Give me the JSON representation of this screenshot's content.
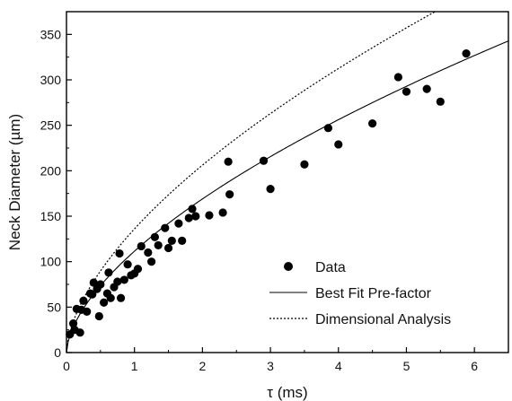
{
  "chart_data": {
    "type": "scatter",
    "xlabel": "τ (ms)",
    "ylabel": "Neck Diameter (µm)",
    "xlim": [
      0,
      6.5
    ],
    "ylim": [
      0,
      375
    ],
    "xticks": [
      "0",
      "1",
      "2",
      "3",
      "4",
      "5",
      "6"
    ],
    "yticks": [
      "0",
      "50",
      "100",
      "150",
      "200",
      "250",
      "300",
      "350"
    ],
    "grid": false,
    "legend_position": "bottom-right",
    "series": [
      {
        "name": "Data",
        "kind": "scatter",
        "color": "#000000",
        "points": [
          [
            0.05,
            20
          ],
          [
            0.1,
            32
          ],
          [
            0.12,
            25
          ],
          [
            0.15,
            48
          ],
          [
            0.2,
            22
          ],
          [
            0.22,
            47
          ],
          [
            0.25,
            57
          ],
          [
            0.3,
            45
          ],
          [
            0.35,
            65
          ],
          [
            0.38,
            64
          ],
          [
            0.4,
            77
          ],
          [
            0.45,
            70
          ],
          [
            0.48,
            40
          ],
          [
            0.5,
            75
          ],
          [
            0.55,
            55
          ],
          [
            0.6,
            65
          ],
          [
            0.62,
            88
          ],
          [
            0.65,
            60
          ],
          [
            0.7,
            72
          ],
          [
            0.75,
            78
          ],
          [
            0.78,
            109
          ],
          [
            0.8,
            60
          ],
          [
            0.85,
            80
          ],
          [
            0.9,
            97
          ],
          [
            0.95,
            85
          ],
          [
            1.0,
            87
          ],
          [
            1.05,
            92
          ],
          [
            1.1,
            117
          ],
          [
            1.2,
            110
          ],
          [
            1.25,
            100
          ],
          [
            1.3,
            127
          ],
          [
            1.35,
            118
          ],
          [
            1.45,
            137
          ],
          [
            1.5,
            115
          ],
          [
            1.55,
            123
          ],
          [
            1.65,
            142
          ],
          [
            1.7,
            123
          ],
          [
            1.8,
            148
          ],
          [
            1.85,
            158
          ],
          [
            1.9,
            150
          ],
          [
            2.1,
            151
          ],
          [
            2.3,
            154
          ],
          [
            2.38,
            210
          ],
          [
            2.4,
            174
          ],
          [
            2.9,
            211
          ],
          [
            3.0,
            180
          ],
          [
            3.5,
            207
          ],
          [
            3.85,
            247
          ],
          [
            4.0,
            229
          ],
          [
            4.5,
            252
          ],
          [
            4.88,
            303
          ],
          [
            5.0,
            287
          ],
          [
            5.3,
            290
          ],
          [
            5.5,
            276
          ],
          [
            5.88,
            329
          ]
        ]
      },
      {
        "name": "Best Fit Pre-factor",
        "kind": "line",
        "style": "solid",
        "color": "#000000",
        "function": "power",
        "coefficient": 111.5,
        "exponent": 0.6
      },
      {
        "name": "Dimensional Analysis",
        "kind": "line",
        "style": "dotted",
        "color": "#000000",
        "function": "power",
        "coefficient": 136,
        "exponent": 0.6
      }
    ]
  }
}
